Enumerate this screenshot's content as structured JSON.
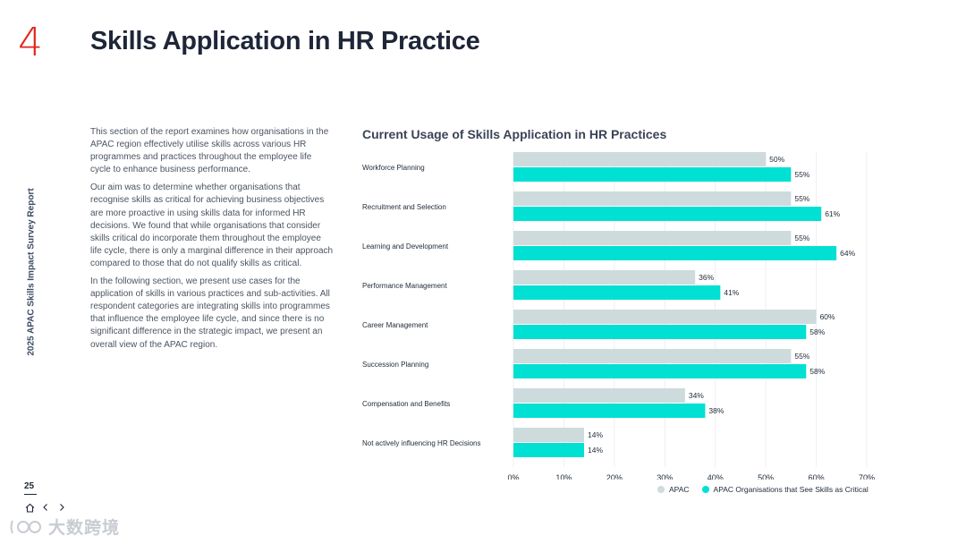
{
  "header": {
    "section_number": "4",
    "title": "Skills Application in HR Practice"
  },
  "side_label": "2025 APAC Skills Impact Survey Report",
  "intro": {
    "paragraphs": [
      "This section of the report examines how organisations in the APAC region effectively utilise skills across various HR programmes and practices throughout the employee life cycle to enhance business performance.",
      "Our aim was to determine whether organisations that recognise skills as critical for achieving business objectives are more proactive in using skills data for informed HR decisions. We found that while organisations that consider skills critical do incorporate them throughout the employee life cycle, there is only a marginal difference in their approach compared to those that do not qualify skills as critical.",
      "In the following section, we present use cases for the application of skills in various practices and sub-activities. All respondent categories are integrating skills into programmes that influence the employee life cycle, and since there is no significant difference in the strategic impact, we present an overall view of the APAC region."
    ]
  },
  "chart_data": {
    "type": "bar",
    "orientation": "horizontal",
    "title": "Current Usage of Skills Application in HR Practices",
    "categories": [
      "Workforce Planning",
      "Recruitment and Selection",
      "Learning and Development",
      "Performance Management",
      "Career Management",
      "Succession Planning",
      "Compensation and Benefits",
      "Not actively influencing HR Decisions"
    ],
    "series": [
      {
        "name": "APAC",
        "color": "#cddbdd",
        "values": [
          50,
          55,
          55,
          36,
          60,
          55,
          34,
          14
        ]
      },
      {
        "name": "APAC Organisations that See Skills as Critical",
        "color": "#00e0d3",
        "values": [
          55,
          61,
          64,
          41,
          58,
          58,
          38,
          14
        ]
      }
    ],
    "value_suffix": "%",
    "xlim": [
      0,
      70
    ],
    "xticks": [
      "0%",
      "10%",
      "20%",
      "30%",
      "40%",
      "50%",
      "60%",
      "70%"
    ],
    "legend_position": "bottom-right",
    "grid": true
  },
  "footer": {
    "page_number": "25"
  },
  "watermark": {
    "text": "大数跨境"
  }
}
